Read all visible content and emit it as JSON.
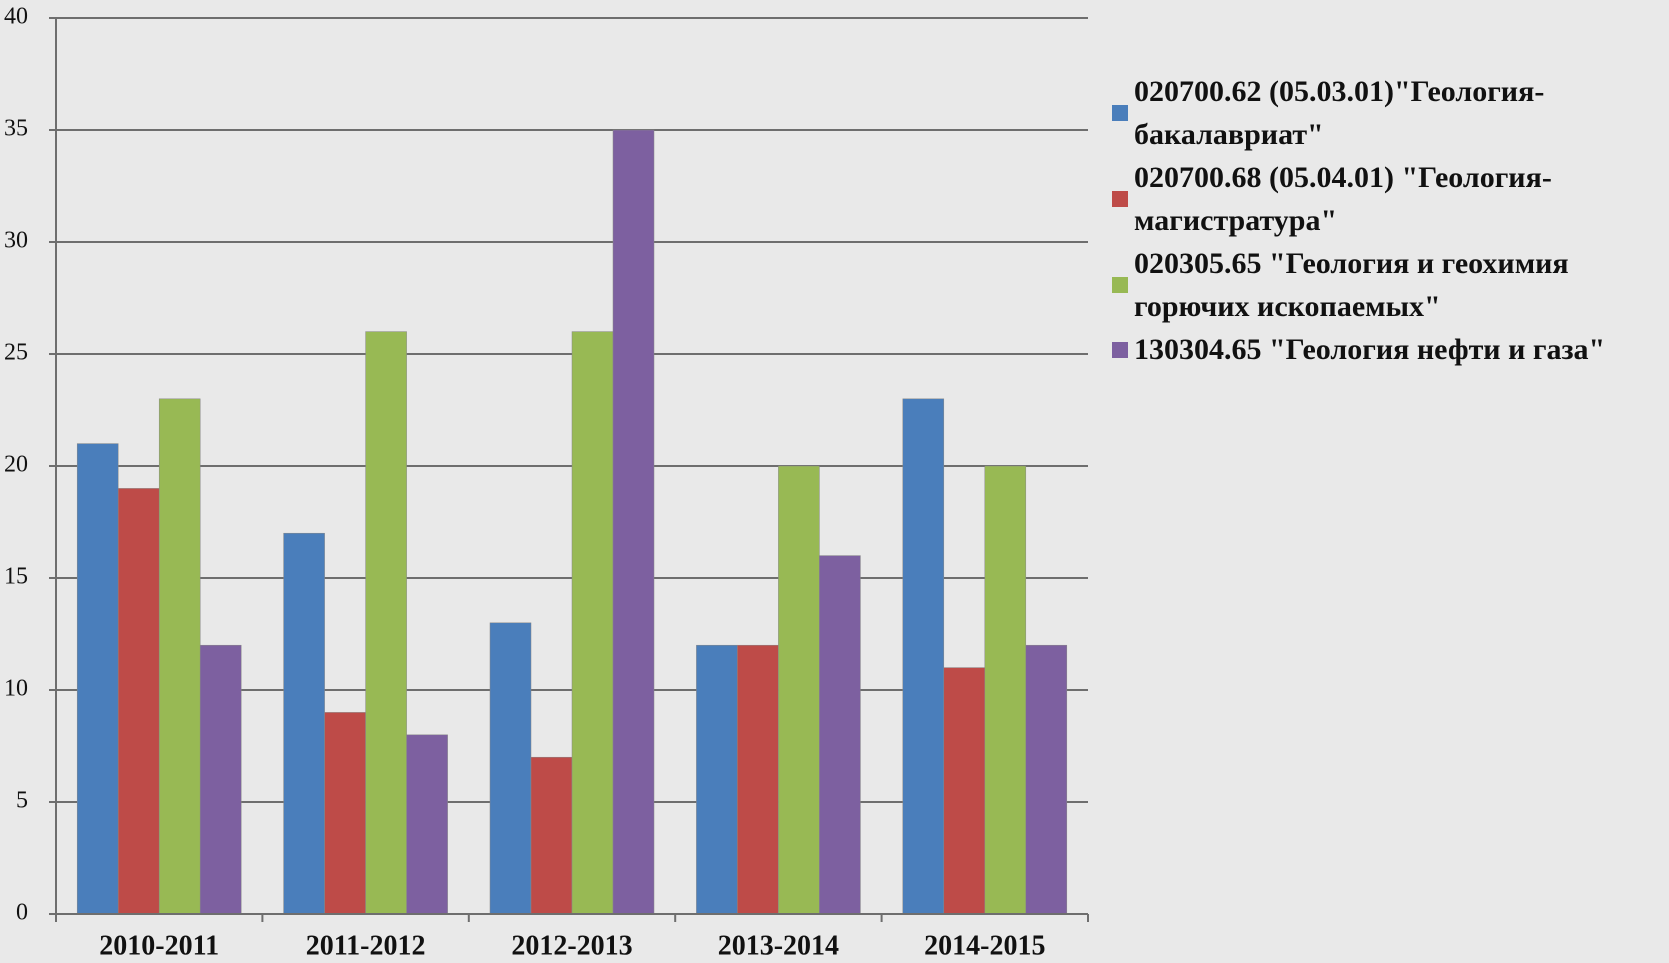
{
  "chart_data": {
    "type": "bar",
    "categories": [
      "2010-2011",
      "2011-2012",
      "2012-2013",
      "2013-2014",
      "2014-2015"
    ],
    "series": [
      {
        "name": "020700.62 (05.03.01)\"Геология-бакалавриат\"",
        "color": "#4a7ebb",
        "values": [
          21,
          17,
          13,
          12,
          23
        ]
      },
      {
        "name": "020700.68 (05.04.01) \"Геология-магистратура\"",
        "color": "#be4b48",
        "values": [
          19,
          9,
          7,
          12,
          11
        ]
      },
      {
        "name": "020305.65 \"Геология и геохимия горючих ископаемых\"",
        "color": "#98b954",
        "values": [
          23,
          26,
          26,
          20,
          20
        ]
      },
      {
        "name": "130304.65 \"Геология нефти и газа\"",
        "color": "#7d60a0",
        "values": [
          12,
          8,
          35,
          16,
          12
        ]
      }
    ],
    "ylim": [
      0,
      40
    ],
    "yticks": [
      0,
      5,
      10,
      15,
      20,
      25,
      30,
      35,
      40
    ],
    "grid": true,
    "legend": "right"
  }
}
